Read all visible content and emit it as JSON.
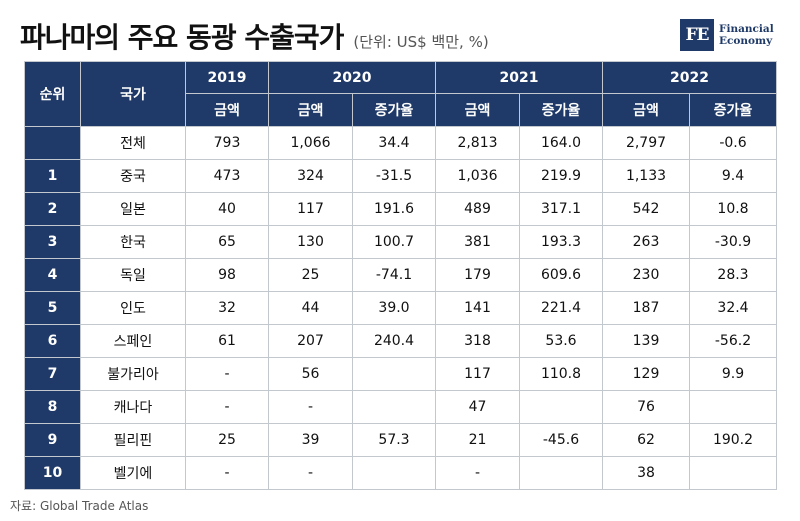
{
  "header": {
    "title": "파나마의 주요 동광 수출국가",
    "unit": "(단위: US$ 백만, %)"
  },
  "logo": {
    "mark": "FE",
    "line1": "Financial",
    "line2": "Economy"
  },
  "table": {
    "rank_header": "순위",
    "country_header": "국가",
    "years": [
      "2019",
      "2020",
      "2021",
      "2022"
    ],
    "amount_label": "금액",
    "growth_label": "증가율",
    "rows": [
      {
        "rank": "",
        "country": "전체",
        "y2019": "793",
        "y2020": "1,066",
        "g2020": "34.4",
        "y2021": "2,813",
        "g2021": "164.0",
        "y2022": "2,797",
        "g2022": "-0.6"
      },
      {
        "rank": "1",
        "country": "중국",
        "y2019": "473",
        "y2020": "324",
        "g2020": "-31.5",
        "y2021": "1,036",
        "g2021": "219.9",
        "y2022": "1,133",
        "g2022": "9.4"
      },
      {
        "rank": "2",
        "country": "일본",
        "y2019": "40",
        "y2020": "117",
        "g2020": "191.6",
        "y2021": "489",
        "g2021": "317.1",
        "y2022": "542",
        "g2022": "10.8"
      },
      {
        "rank": "3",
        "country": "한국",
        "y2019": "65",
        "y2020": "130",
        "g2020": "100.7",
        "y2021": "381",
        "g2021": "193.3",
        "y2022": "263",
        "g2022": "-30.9"
      },
      {
        "rank": "4",
        "country": "독일",
        "y2019": "98",
        "y2020": "25",
        "g2020": "-74.1",
        "y2021": "179",
        "g2021": "609.6",
        "y2022": "230",
        "g2022": "28.3"
      },
      {
        "rank": "5",
        "country": "인도",
        "y2019": "32",
        "y2020": "44",
        "g2020": "39.0",
        "y2021": "141",
        "g2021": "221.4",
        "y2022": "187",
        "g2022": "32.4"
      },
      {
        "rank": "6",
        "country": "스페인",
        "y2019": "61",
        "y2020": "207",
        "g2020": "240.4",
        "y2021": "318",
        "g2021": "53.6",
        "y2022": "139",
        "g2022": "-56.2"
      },
      {
        "rank": "7",
        "country": "불가리아",
        "y2019": "-",
        "y2020": "56",
        "g2020": "",
        "y2021": "117",
        "g2021": "110.8",
        "y2022": "129",
        "g2022": "9.9"
      },
      {
        "rank": "8",
        "country": "캐나다",
        "y2019": "-",
        "y2020": "-",
        "g2020": "",
        "y2021": "47",
        "g2021": "",
        "y2022": "76",
        "g2022": ""
      },
      {
        "rank": "9",
        "country": "필리핀",
        "y2019": "25",
        "y2020": "39",
        "g2020": "57.3",
        "y2021": "21",
        "g2021": "-45.6",
        "y2022": "62",
        "g2022": "190.2"
      },
      {
        "rank": "10",
        "country": "벨기에",
        "y2019": "-",
        "y2020": "-",
        "g2020": "",
        "y2021": "-",
        "g2021": "",
        "y2022": "38",
        "g2022": ""
      }
    ]
  },
  "source": "자료: Global Trade Atlas",
  "colors": {
    "header_bg": "#1f3a68",
    "border": "#c3c7ce"
  }
}
